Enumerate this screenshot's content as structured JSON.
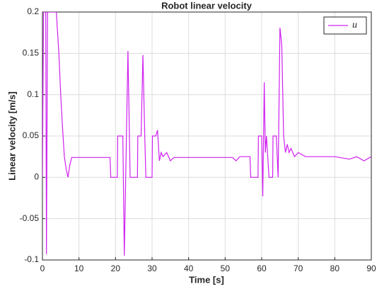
{
  "chart_data": {
    "type": "line",
    "title": "Robot linear velocity",
    "xlabel": "Time [s]",
    "ylabel": "Linear velocity [m/s]",
    "x": [
      0,
      0.3,
      0.9,
      1.1,
      1.4,
      3.8,
      4.5,
      5,
      5.5,
      6,
      6.5,
      7,
      7.5,
      8,
      10,
      15,
      18.5,
      18.7,
      20.5,
      20.6,
      22,
      22.4,
      23.4,
      24,
      26,
      26.1,
      27,
      27.5,
      28,
      28.3,
      30,
      30.1,
      31,
      31.5,
      32,
      32.5,
      33,
      34,
      35,
      36,
      52,
      53,
      54,
      56.8,
      57,
      59,
      59.1,
      60,
      60.3,
      60.7,
      61,
      61.3,
      62,
      63,
      63.1,
      64,
      64.5,
      65,
      65.5,
      66,
      66.5,
      67,
      67.5,
      68,
      69,
      70,
      72,
      80,
      84,
      86,
      88,
      90
    ],
    "series": [
      {
        "name": "u",
        "color": "#d020f0",
        "values": [
          0,
          0.2,
          0.2,
          -0.093,
          0.2,
          0.2,
          0.15,
          0.1,
          0.06,
          0.025,
          0.01,
          0,
          0.015,
          0.024,
          0.024,
          0.024,
          0.024,
          0,
          0,
          0.05,
          0.05,
          -0.095,
          0.153,
          0,
          0,
          0.05,
          0.05,
          0.148,
          0.05,
          0,
          0,
          0.05,
          0.05,
          0.057,
          0.02,
          0.03,
          0.025,
          0.03,
          0.02,
          0.024,
          0.024,
          0.02,
          0.025,
          0.025,
          0,
          0,
          0.05,
          0.05,
          -0.023,
          0.115,
          0.03,
          0.05,
          0,
          0,
          0.05,
          0.05,
          0,
          0.181,
          0.16,
          0.05,
          0.03,
          0.04,
          0.03,
          0.035,
          0.025,
          0.03,
          0.025,
          0.025,
          0.022,
          0.025,
          0.02,
          0.025
        ]
      }
    ],
    "xlim": [
      0,
      90
    ],
    "xticks": [
      0,
      10,
      20,
      30,
      40,
      50,
      60,
      70,
      80,
      90
    ],
    "ylim": [
      -0.1,
      0.2
    ],
    "yticks": [
      -0.1,
      -0.05,
      0,
      0.05,
      0.1,
      0.15,
      0.2
    ],
    "grid": true,
    "legend": "upper right"
  }
}
